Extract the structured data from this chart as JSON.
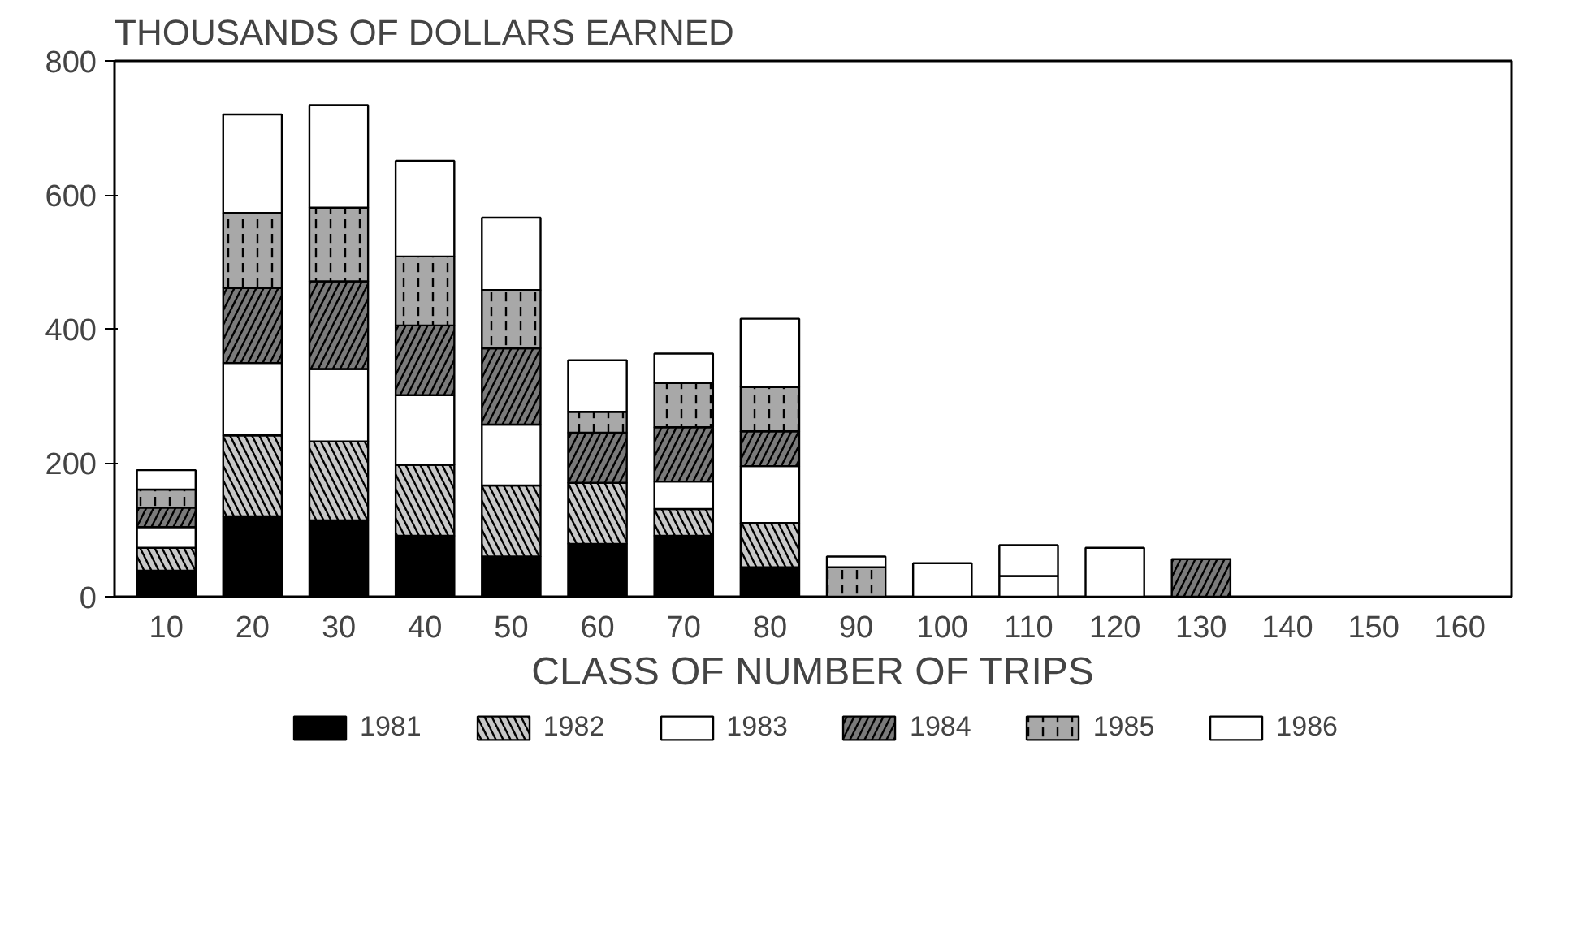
{
  "chart_data": {
    "type": "bar",
    "stacked": true,
    "title": "THOUSANDS OF DOLLARS EARNED",
    "xlabel": "CLASS OF NUMBER OF TRIPS",
    "categories": [
      "10",
      "20",
      "30",
      "40",
      "50",
      "60",
      "70",
      "80",
      "90",
      "100",
      "110",
      "120",
      "130",
      "140",
      "150",
      "160"
    ],
    "ylim": [
      0,
      800
    ],
    "yticks": [
      0,
      200,
      400,
      600,
      800
    ],
    "grid": false,
    "legend": "bottom",
    "series": [
      {
        "name": "1981",
        "color": "#000000",
        "values": [
          39,
          120,
          114,
          91,
          60,
          79,
          91,
          44,
          0,
          0,
          0,
          0,
          0,
          0,
          0,
          0
        ]
      },
      {
        "name": "1982",
        "color": "#c8c8c8",
        "values": [
          34,
          121,
          118,
          106,
          106,
          91,
          40,
          66,
          0,
          0,
          0,
          0,
          0,
          0,
          0,
          0
        ]
      },
      {
        "name": "1983",
        "color": "#ffffff",
        "values": [
          31,
          108,
          108,
          104,
          91,
          0,
          41,
          85,
          0,
          0,
          31,
          0,
          0,
          0,
          0,
          0
        ]
      },
      {
        "name": "1984",
        "color": "#7a7a7a",
        "values": [
          29,
          112,
          131,
          104,
          114,
          75,
          81,
          52,
          0,
          0,
          0,
          0,
          56,
          0,
          0,
          0
        ]
      },
      {
        "name": "1985",
        "color": "#a8a8a8",
        "values": [
          27,
          112,
          110,
          103,
          87,
          31,
          66,
          66,
          44,
          0,
          0,
          0,
          0,
          0,
          0,
          0
        ]
      },
      {
        "name": "1986",
        "color": "#ffffff",
        "values": [
          29,
          147,
          153,
          143,
          108,
          77,
          44,
          102,
          16,
          50,
          46,
          73,
          0,
          0,
          0,
          0
        ]
      }
    ]
  }
}
